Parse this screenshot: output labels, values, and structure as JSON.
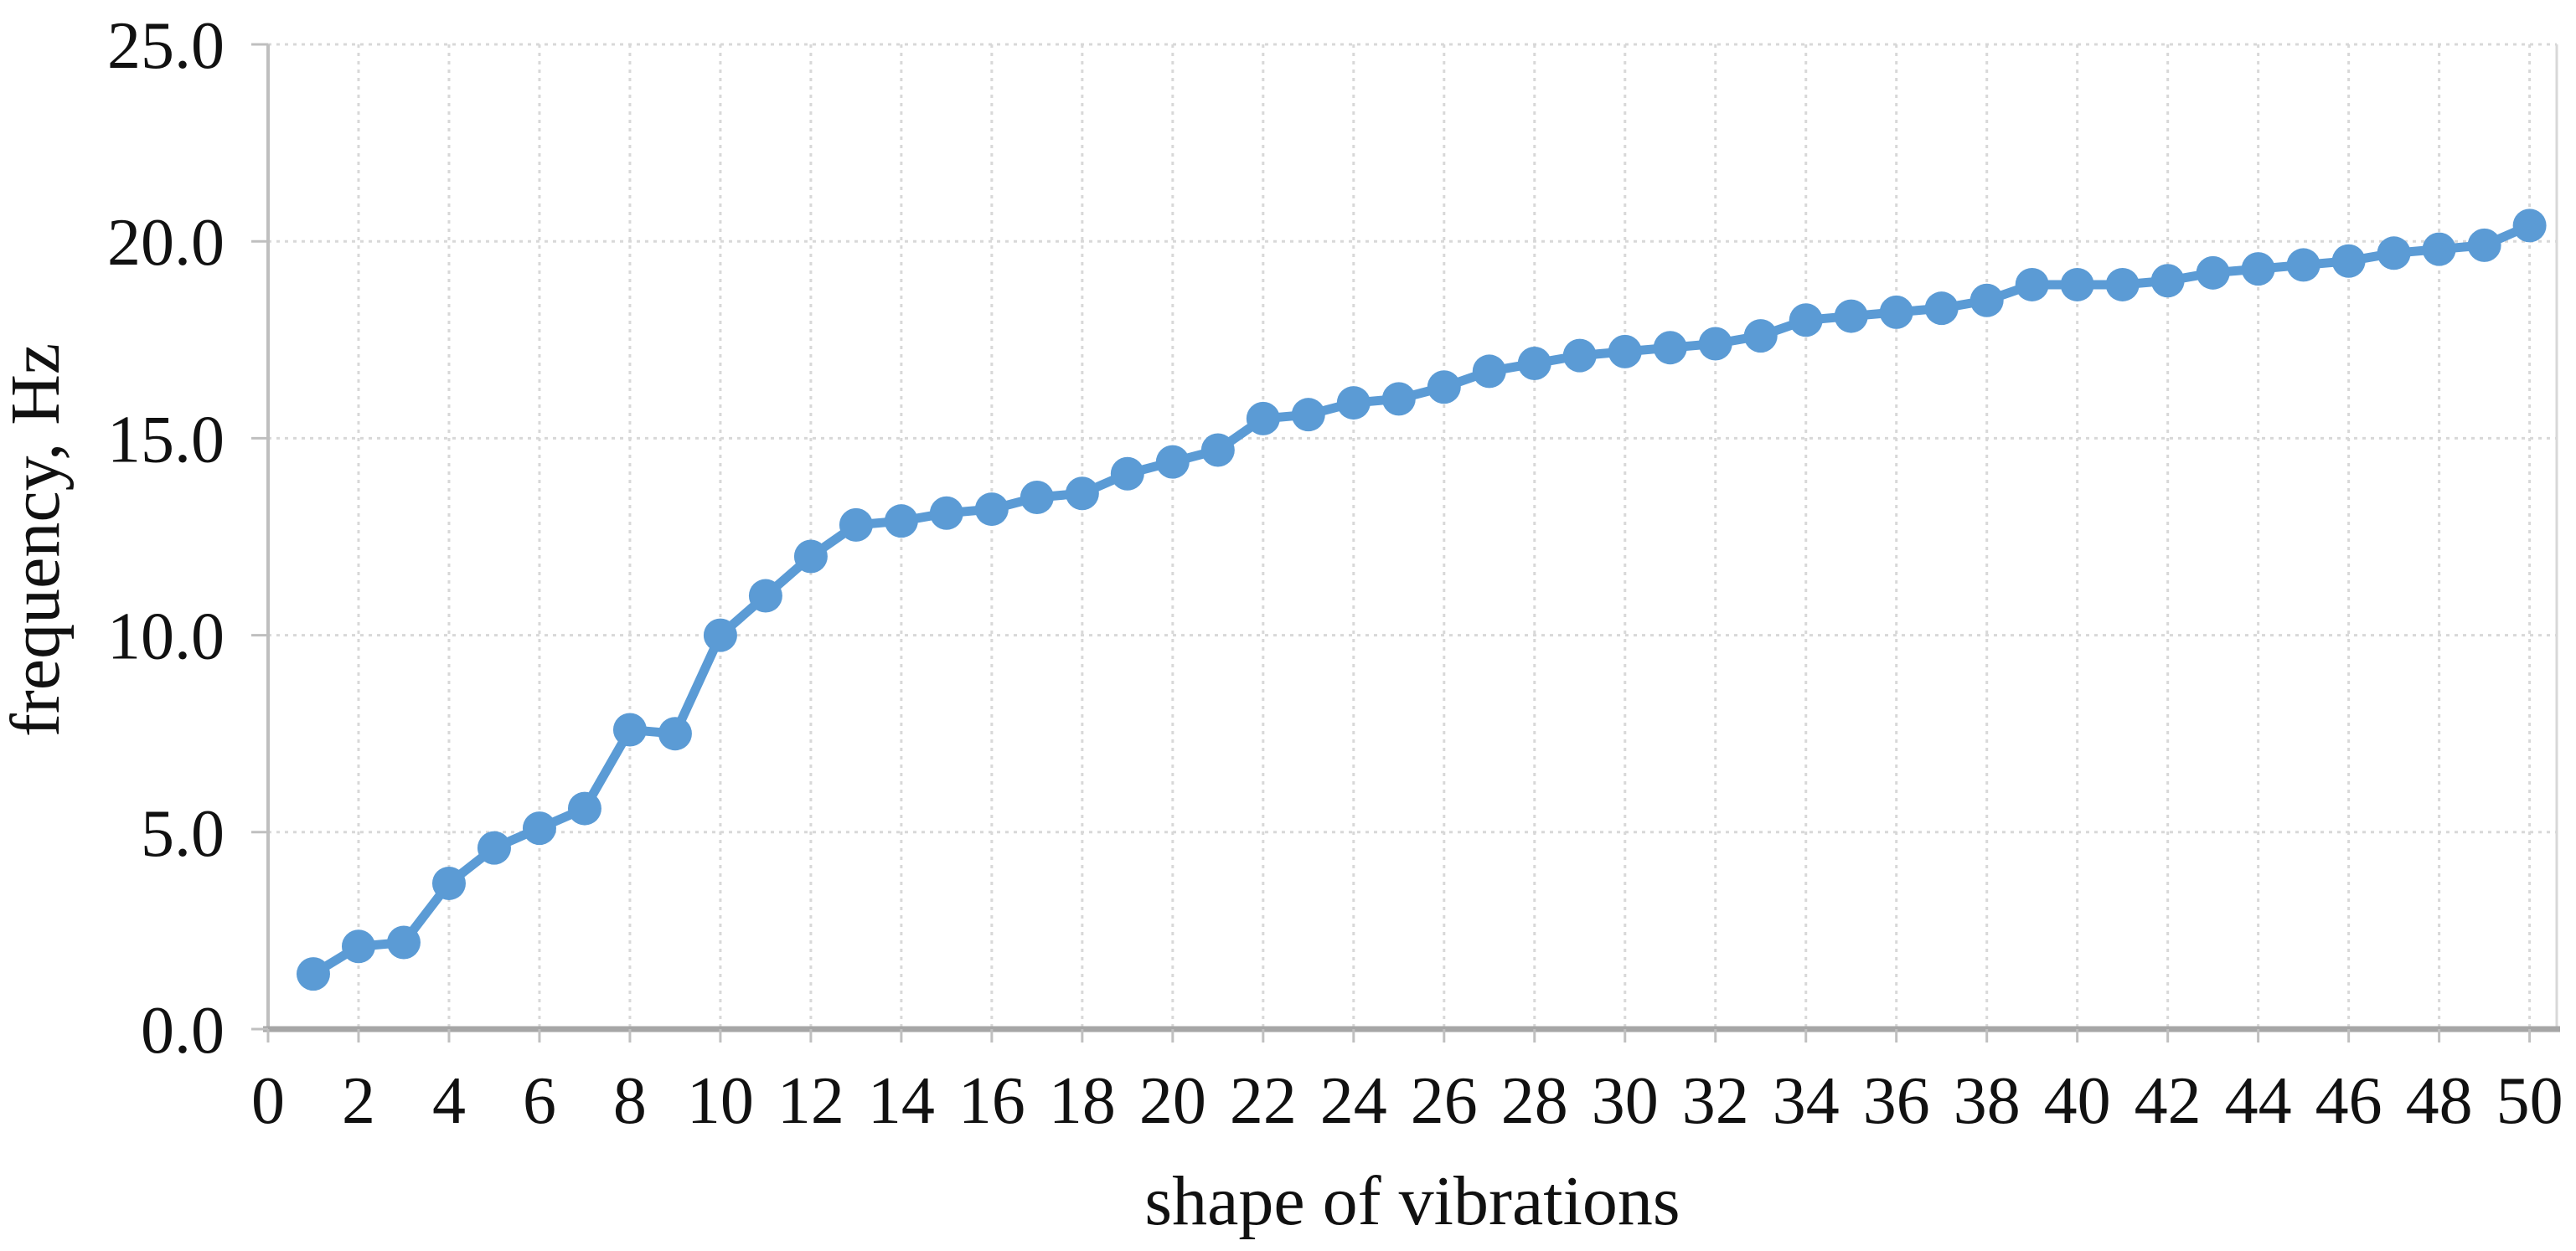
{
  "chart_data": {
    "type": "line",
    "title": "",
    "xlabel": "shape of vibrations",
    "ylabel": "frequency, Hz",
    "x": [
      1,
      2,
      3,
      4,
      5,
      6,
      7,
      8,
      9,
      10,
      11,
      12,
      13,
      14,
      15,
      16,
      17,
      18,
      19,
      20,
      21,
      22,
      23,
      24,
      25,
      26,
      27,
      28,
      29,
      30,
      31,
      32,
      33,
      34,
      35,
      36,
      37,
      38,
      39,
      40,
      41,
      42,
      43,
      44,
      45,
      46,
      47,
      48,
      49,
      50
    ],
    "y": [
      1.4,
      2.1,
      2.2,
      3.7,
      4.6,
      5.1,
      5.6,
      7.6,
      7.5,
      10.0,
      11.0,
      12.0,
      12.8,
      12.9,
      13.1,
      13.2,
      13.5,
      13.6,
      14.1,
      14.4,
      14.7,
      15.5,
      15.6,
      15.9,
      16.0,
      16.3,
      16.7,
      16.9,
      17.1,
      17.2,
      17.3,
      17.4,
      17.6,
      18.0,
      18.1,
      18.2,
      18.3,
      18.5,
      18.9,
      18.9,
      18.9,
      19.0,
      19.2,
      19.3,
      19.4,
      19.5,
      19.7,
      19.8,
      19.9,
      20.4
    ],
    "xlim": [
      0,
      50.6
    ],
    "ylim": [
      0,
      25
    ],
    "x_tick_values": [
      0,
      2,
      4,
      6,
      8,
      10,
      12,
      14,
      16,
      18,
      20,
      22,
      24,
      26,
      28,
      30,
      32,
      34,
      36,
      38,
      40,
      42,
      44,
      46,
      48,
      50
    ],
    "x_tick_labels": [
      "0",
      "2",
      "4",
      "6",
      "8",
      "10",
      "12",
      "14",
      "16",
      "18",
      "20",
      "22",
      "24",
      "26",
      "28",
      "30",
      "32",
      "34",
      "36",
      "38",
      "40",
      "42",
      "44",
      "46",
      "48",
      "50"
    ],
    "y_tick_values": [
      0,
      5,
      10,
      15,
      20,
      25
    ],
    "y_tick_labels": [
      "0.0",
      "5.0",
      "10.0",
      "15.0",
      "20.0",
      "25.0"
    ],
    "grid": true,
    "legend": false,
    "marker": "circle",
    "series_name": "frequency"
  },
  "colors": {
    "series": "#5B9BD5",
    "gridline": "#D8D8D8",
    "axis_line": "#A6A6A6",
    "plot_border": "#BFBFBF",
    "tick_mark": "#BFBFBF",
    "text": "#111111",
    "background": "#FFFFFF"
  }
}
